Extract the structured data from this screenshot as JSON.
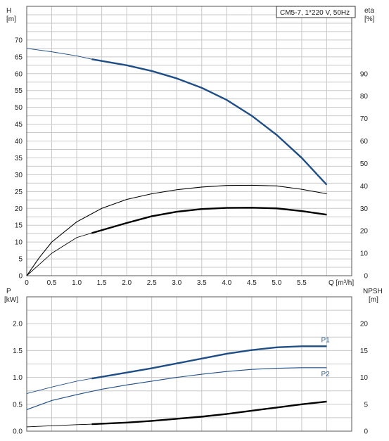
{
  "chart_data": [
    {
      "type": "line",
      "title": "CM5-7, 1*220 V, 50Hz",
      "xlabel": "Q [m³/h]",
      "ylabel_left_top": "H",
      "ylabel_left_bottom": "[m]",
      "ylabel_right_top": "eta",
      "ylabel_right_bottom": "[%]",
      "xlim": [
        0,
        6.5
      ],
      "xticks": [
        "0",
        "0.5",
        "1.0",
        "1.5",
        "2.0",
        "2.5",
        "3.0",
        "3.5",
        "4.0",
        "4.5",
        "5.0",
        "5.5"
      ],
      "ylim_left": [
        0,
        80
      ],
      "yticks_left": [
        "0",
        "5",
        "10",
        "15",
        "20",
        "25",
        "30",
        "35",
        "40",
        "45",
        "50",
        "55",
        "60",
        "65",
        "70"
      ],
      "ylim_right": [
        0,
        120
      ],
      "yticks_right": [
        "0",
        "10",
        "20",
        "30",
        "40",
        "50",
        "60",
        "70",
        "80",
        "90"
      ],
      "grid": true,
      "series": [
        {
          "axis": "left",
          "color": "#1f4e86",
          "x": [
            0,
            0.5,
            1.0,
            1.3,
            2.0,
            2.5,
            3.0,
            3.5,
            4.0,
            4.5,
            5.0,
            5.5,
            6.0
          ],
          "y": [
            67.5,
            66.5,
            65.3,
            64.3,
            62.5,
            60.8,
            58.6,
            55.8,
            52.2,
            47.5,
            41.8,
            35.0,
            27.0
          ],
          "bold_from": 1.3
        },
        {
          "axis": "right",
          "color": "#000000",
          "x": [
            0,
            0.25,
            0.5,
            1.0,
            1.5,
            2.0,
            2.5,
            3.0,
            3.5,
            4.0,
            4.5,
            5.0,
            5.5,
            6.0
          ],
          "y": [
            0,
            8,
            15,
            24,
            30,
            34,
            36.5,
            38.3,
            39.5,
            40.2,
            40.3,
            40.0,
            38.5,
            36.5
          ]
        },
        {
          "axis": "right",
          "color": "#000000",
          "x": [
            0,
            0.25,
            0.5,
            1.0,
            1.3,
            2.0,
            2.5,
            3.0,
            3.5,
            4.0,
            4.5,
            5.0,
            5.5,
            6.0
          ],
          "y": [
            0,
            5,
            10,
            17,
            19,
            23.5,
            26.5,
            28.5,
            29.7,
            30.2,
            30.3,
            30.0,
            28.8,
            27.2
          ],
          "bold_from": 1.3
        }
      ]
    },
    {
      "type": "line",
      "title": "",
      "xlabel": "",
      "ylabel_left_top": "P",
      "ylabel_left_bottom": "[kW]",
      "ylabel_right_top": "NPSH",
      "ylabel_right_bottom": "[m]",
      "xlim": [
        0,
        6.5
      ],
      "ylim_left": [
        0,
        2.5
      ],
      "yticks_left": [
        "0.0",
        "0.5",
        "1.0",
        "1.5",
        "2.0"
      ],
      "ylim_right": [
        0,
        25
      ],
      "yticks_right": [
        "0",
        "5",
        "10",
        "15",
        "20"
      ],
      "grid": true,
      "series": [
        {
          "name": "P1",
          "axis": "left",
          "color": "#1f4e86",
          "x": [
            0,
            0.5,
            1.0,
            1.3,
            2.0,
            2.5,
            3.0,
            3.5,
            4.0,
            4.5,
            5.0,
            5.5,
            6.0
          ],
          "y": [
            0.7,
            0.82,
            0.93,
            0.98,
            1.09,
            1.17,
            1.26,
            1.35,
            1.44,
            1.51,
            1.56,
            1.58,
            1.58
          ],
          "bold_from": 1.3
        },
        {
          "name": "P2",
          "axis": "left",
          "color": "#1f4e86",
          "x": [
            0,
            0.5,
            1.0,
            1.5,
            2.0,
            2.5,
            3.0,
            3.5,
            4.0,
            4.5,
            5.0,
            5.5,
            6.0
          ],
          "y": [
            0.4,
            0.57,
            0.68,
            0.78,
            0.86,
            0.93,
            1.0,
            1.06,
            1.11,
            1.15,
            1.17,
            1.18,
            1.18
          ]
        },
        {
          "axis": "right",
          "color": "#000000",
          "x": [
            0,
            0.5,
            1.0,
            1.3,
            2.0,
            2.5,
            3.0,
            3.5,
            4.0,
            4.5,
            5.0,
            5.5,
            6.0
          ],
          "y": [
            0.8,
            1.0,
            1.2,
            1.3,
            1.6,
            1.9,
            2.3,
            2.7,
            3.2,
            3.8,
            4.4,
            5.0,
            5.5
          ],
          "bold_from": 1.3
        }
      ]
    }
  ]
}
